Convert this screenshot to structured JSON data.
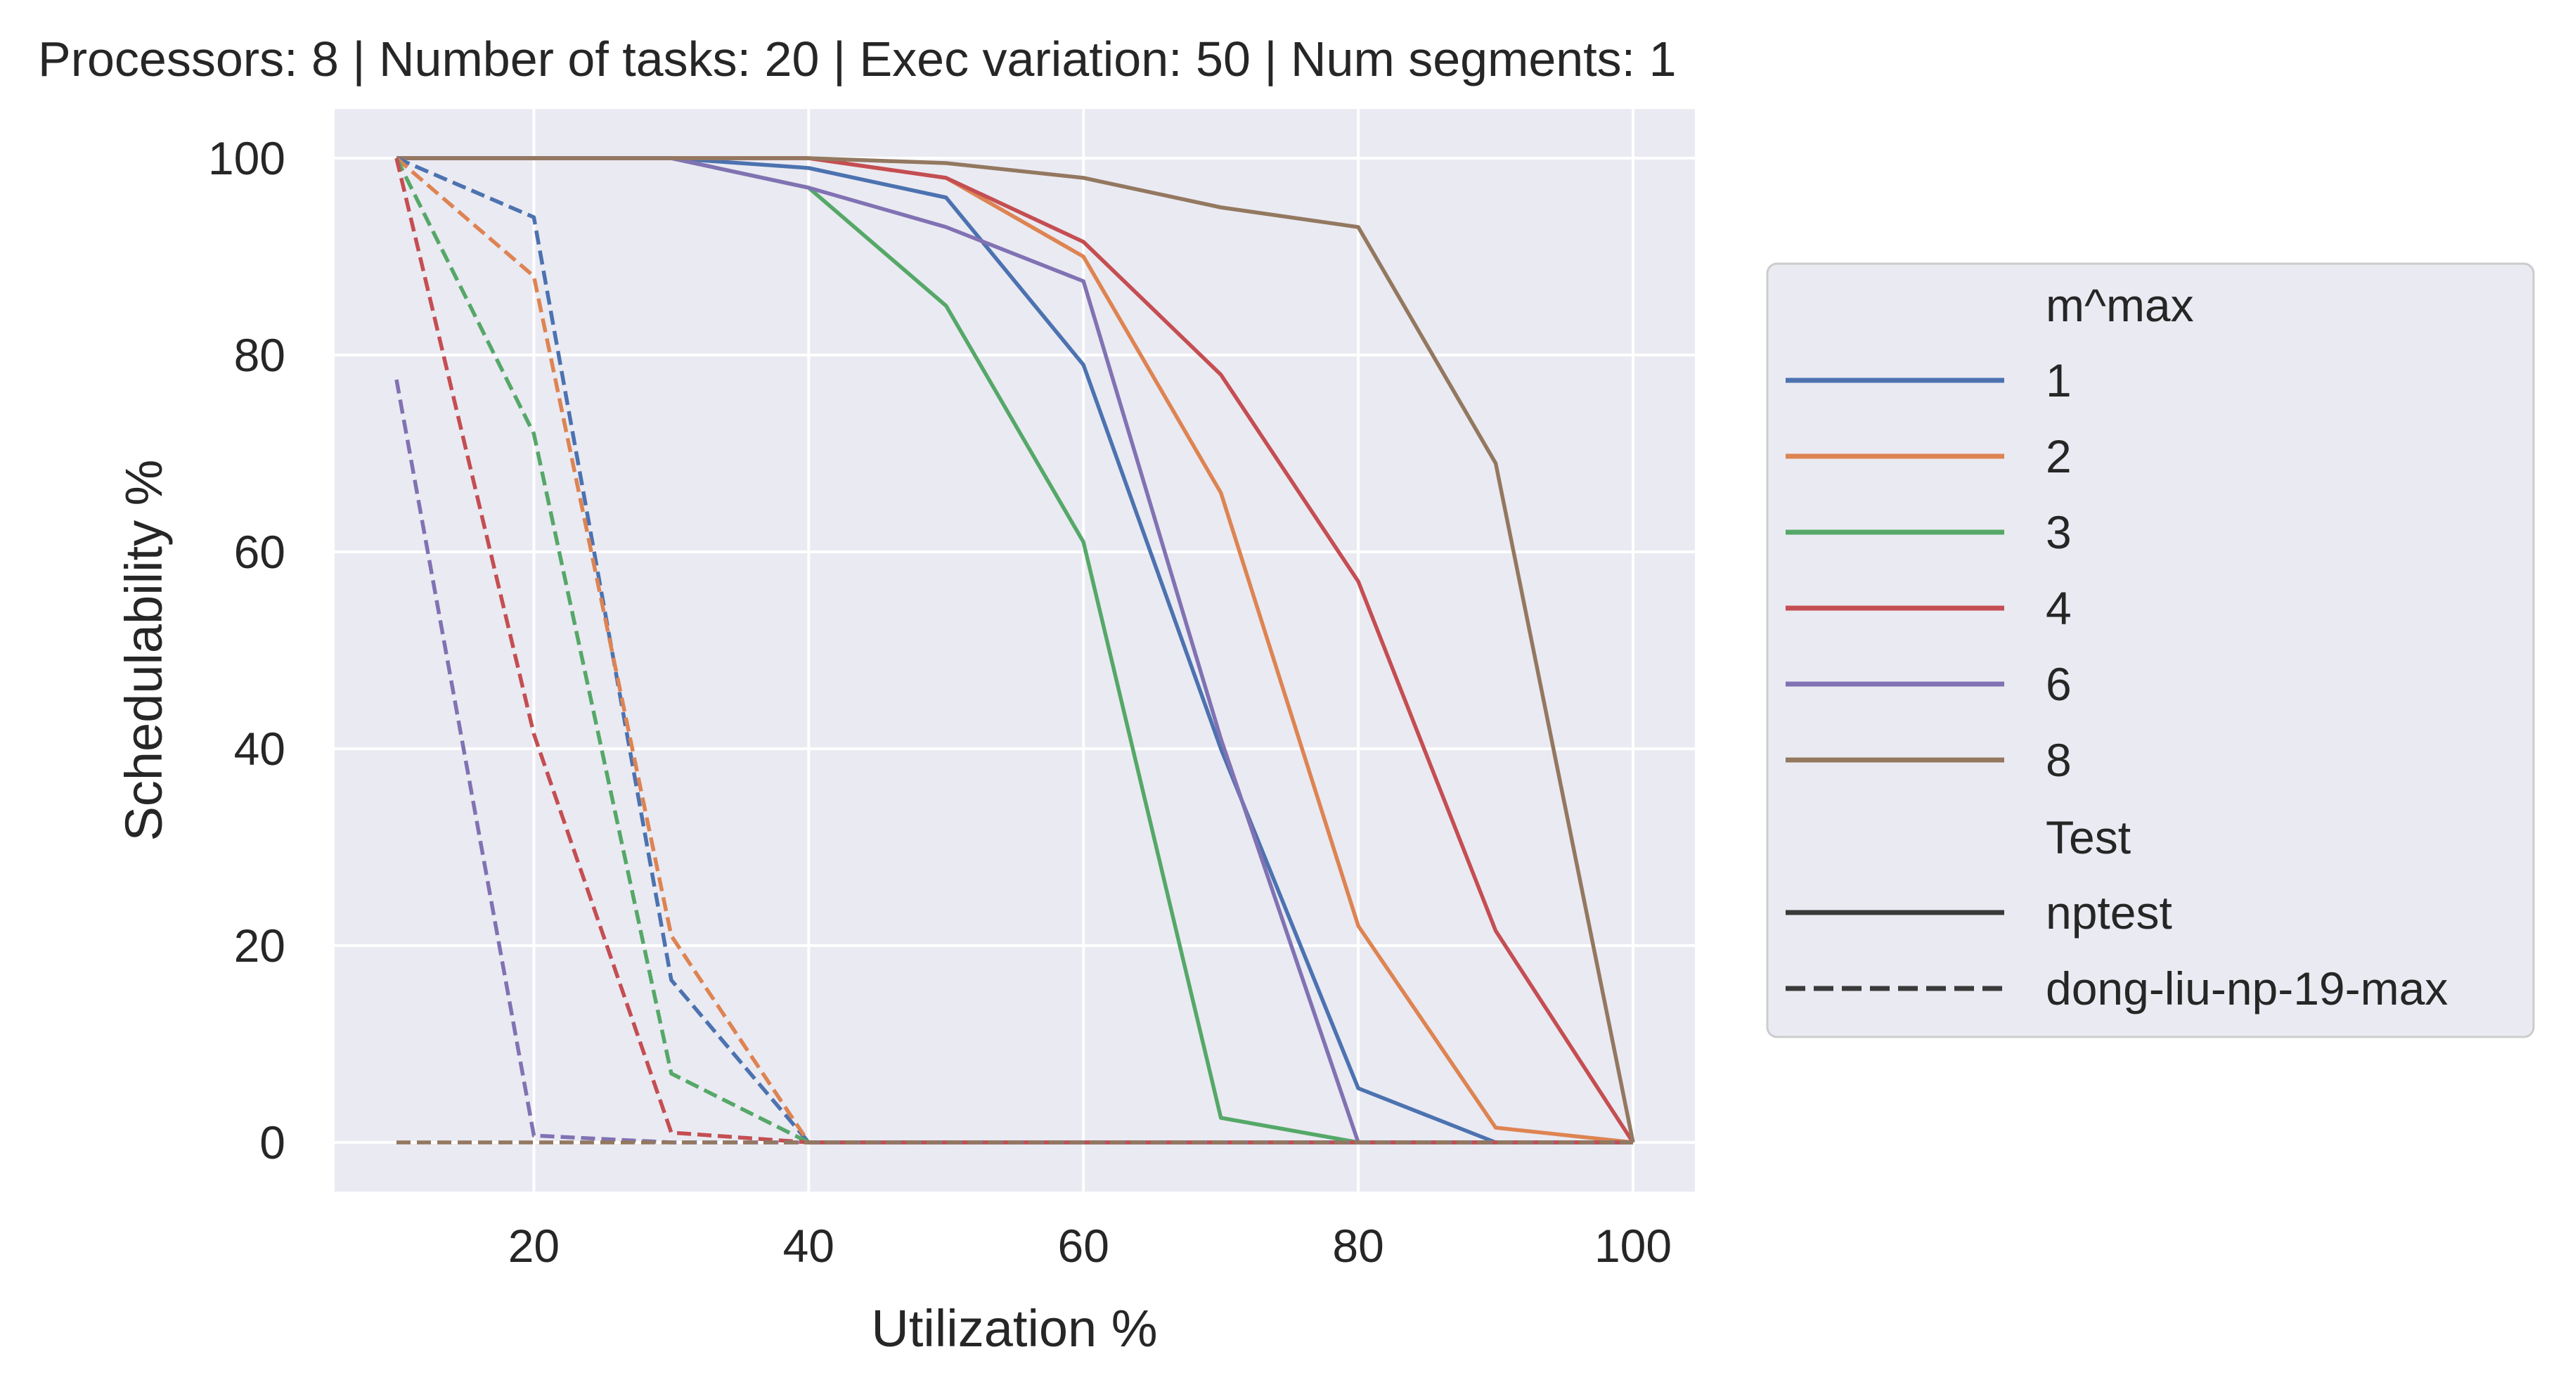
{
  "chart_data": {
    "type": "line",
    "title": "Processors: 8 | Number of tasks: 20 | Exec variation: 50 | Num segments: 1",
    "xlabel": "Utilization %",
    "ylabel": "Schedulability %",
    "xlim": [
      5.5,
      104.5
    ],
    "ylim": [
      -5,
      105
    ],
    "xticks": [
      20,
      40,
      60,
      80,
      100
    ],
    "yticks": [
      0,
      20,
      40,
      60,
      80,
      100
    ],
    "grid": true,
    "legend_position": "right",
    "x": [
      10,
      20,
      30,
      40,
      50,
      60,
      70,
      80,
      90,
      100
    ],
    "legend": {
      "hue_title": "m^max",
      "style_title": "Test",
      "hue_entries": [
        {
          "label": "1",
          "color": "#4c72b0"
        },
        {
          "label": "2",
          "color": "#dd8452"
        },
        {
          "label": "3",
          "color": "#55a868"
        },
        {
          "label": "4",
          "color": "#c44e52"
        },
        {
          "label": "6",
          "color": "#8172b3"
        },
        {
          "label": "8",
          "color": "#937860"
        }
      ],
      "style_entries": [
        {
          "label": "nptest",
          "dash": "solid"
        },
        {
          "label": "dong-liu-np-19-max",
          "dash": "dashed"
        }
      ]
    },
    "series": [
      {
        "hue": "1",
        "test": "nptest",
        "color": "#4c72b0",
        "dash": "solid",
        "values": [
          100,
          100,
          100,
          99,
          96,
          79,
          40,
          5.5,
          0,
          0
        ]
      },
      {
        "hue": "2",
        "test": "nptest",
        "color": "#dd8452",
        "dash": "solid",
        "values": [
          100,
          100,
          100,
          100,
          98,
          90,
          66,
          22,
          1.5,
          0
        ]
      },
      {
        "hue": "3",
        "test": "nptest",
        "color": "#55a868",
        "dash": "solid",
        "values": [
          100,
          100,
          100,
          97,
          85,
          61,
          2.5,
          0,
          0,
          0
        ]
      },
      {
        "hue": "4",
        "test": "nptest",
        "color": "#c44e52",
        "dash": "solid",
        "values": [
          100,
          100,
          100,
          100,
          98,
          91.5,
          78,
          57,
          21.5,
          0
        ]
      },
      {
        "hue": "6",
        "test": "nptest",
        "color": "#8172b3",
        "dash": "solid",
        "values": [
          100,
          100,
          100,
          97,
          93,
          87.5,
          41,
          0,
          0,
          0
        ]
      },
      {
        "hue": "8",
        "test": "nptest",
        "color": "#937860",
        "dash": "solid",
        "values": [
          100,
          100,
          100,
          100,
          99.5,
          98,
          95,
          93,
          69,
          0
        ]
      },
      {
        "hue": "1",
        "test": "dong-liu-np-19-max",
        "color": "#4c72b0",
        "dash": "dashed",
        "values": [
          100,
          94,
          16.5,
          0,
          0,
          0,
          0,
          0,
          0,
          0
        ]
      },
      {
        "hue": "2",
        "test": "dong-liu-np-19-max",
        "color": "#dd8452",
        "dash": "dashed",
        "values": [
          100,
          88,
          21,
          0,
          0,
          0,
          0,
          0,
          0,
          0
        ]
      },
      {
        "hue": "3",
        "test": "dong-liu-np-19-max",
        "color": "#55a868",
        "dash": "dashed",
        "values": [
          100,
          72,
          7,
          0,
          0,
          0,
          0,
          0,
          0,
          0
        ]
      },
      {
        "hue": "4",
        "test": "dong-liu-np-19-max",
        "color": "#c44e52",
        "dash": "dashed",
        "values": [
          100,
          41.5,
          1,
          0,
          0,
          0,
          0,
          0,
          0,
          0
        ]
      },
      {
        "hue": "6",
        "test": "dong-liu-np-19-max",
        "color": "#8172b3",
        "dash": "dashed",
        "values": [
          77.5,
          0.7,
          0,
          0,
          0,
          0,
          0,
          0,
          0,
          0
        ]
      },
      {
        "hue": "8",
        "test": "dong-liu-np-19-max",
        "color": "#937860",
        "dash": "dashed",
        "values": [
          0,
          0,
          0,
          0,
          0,
          0,
          0,
          0,
          0,
          0
        ]
      }
    ]
  }
}
